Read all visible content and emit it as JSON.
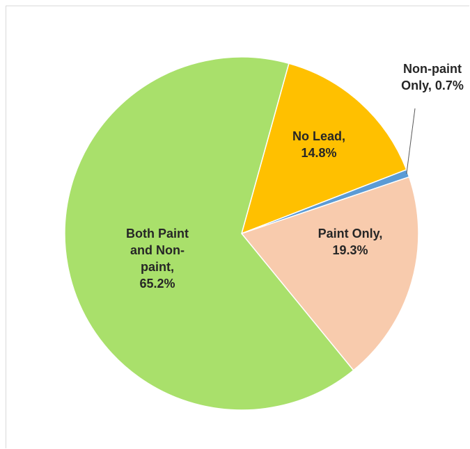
{
  "chart_data": {
    "type": "pie",
    "slices": [
      {
        "label_lines": [
          "No Lead,",
          "14.8%"
        ],
        "name": "No Lead",
        "value": 14.8,
        "color": "#FFC000"
      },
      {
        "label_lines": [
          "Non-paint",
          "Only, 0.7%"
        ],
        "name": "Non-paint Only",
        "value": 0.7,
        "color": "#5B9BD5"
      },
      {
        "label_lines": [
          "Paint Only,",
          "19.3%"
        ],
        "name": "Paint Only",
        "value": 19.3,
        "color": "#F8CBAD"
      },
      {
        "label_lines": [
          "Both Paint",
          "and Non-",
          "paint,",
          "65.2%"
        ],
        "name": "Both Paint and Non-paint",
        "value": 65.2,
        "color": "#A9E06B"
      }
    ]
  }
}
